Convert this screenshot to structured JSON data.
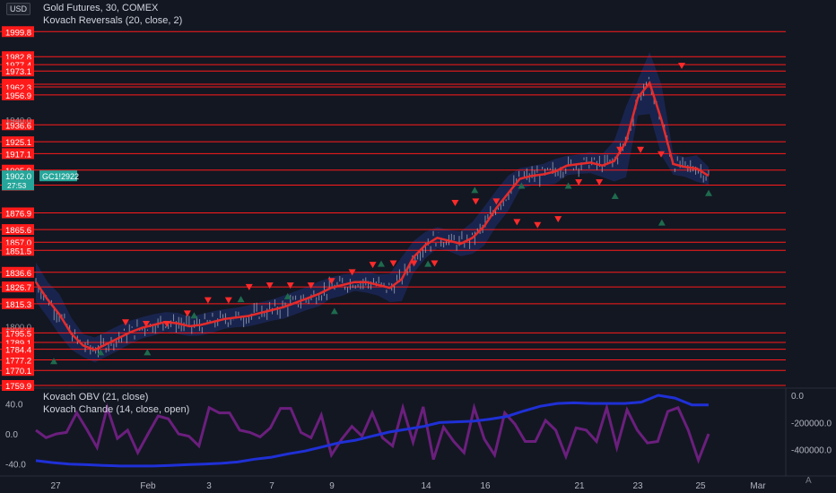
{
  "header": {
    "currency": "USD",
    "symbol_title": "Gold Futures, 30, COMEX",
    "indicator": "Kovach Reversals (20, close, 2)"
  },
  "sub_pane": {
    "indicator_1": "Kovach OBV (21, close)",
    "indicator_2": "Kovach Chande (14, close, open)"
  },
  "footer": {
    "auto_label": "A"
  },
  "colors": {
    "background": "#131722",
    "level_line": "#ff1a1a",
    "price_line": "#e52b2b",
    "band": "#1c2a5e",
    "candle": "#9aa3b5",
    "arrow_down": "#ff2a2a",
    "arrow_up": "#1e6b4e",
    "obv_line": "#1f30d6",
    "chande_line": "#6b1f7d",
    "price_badge": "#26a69a"
  },
  "icons": {
    "down_marker": "triangle-down-icon",
    "up_marker": "triangle-up-icon"
  },
  "chart_data": [
    {
      "type": "line",
      "xlabel": "",
      "ylabel": "",
      "x_ticks": [
        "27",
        "Feb",
        "3",
        "7",
        "9",
        "14",
        "16",
        "21",
        "23",
        "25",
        "Mar"
      ],
      "ylim": [
        1759.9,
        2003
      ],
      "levels": [
        1999.8,
        1982.8,
        1977.4,
        1973.1,
        1964.1,
        1962.3,
        1956.9,
        1936.6,
        1925.1,
        1917.1,
        1905.9,
        1895.7,
        1876.9,
        1865.6,
        1857.0,
        1851.5,
        1836.6,
        1826.7,
        1815.3,
        1795.5,
        1789.1,
        1784.4,
        1777.2,
        1770.1,
        1759.9
      ],
      "level_labels": [
        "1999.8",
        "1982.8",
        "1977.4",
        "1973.1",
        "1964.1",
        "1962.3",
        "1956.9",
        "1936.6",
        "1925.1",
        "1917.1",
        "1905.9",
        "1895.7",
        "1876.9",
        "1865.6",
        "1857.0",
        "1851.5",
        "1836.6",
        "1826.7",
        "1815.3",
        "1795.5",
        "1789.1",
        "1784.4",
        "1777.2",
        "1770.1",
        "1759.9"
      ],
      "gray_ticks": [
        "1940.0",
        "1800.0"
      ],
      "last_price": "1902.0",
      "last_price_sub": "27:53",
      "last_symbol": "GC1!2922",
      "series": [
        {
          "values": [
            1830,
            1818,
            1808,
            1795,
            1787,
            1784,
            1788,
            1792,
            1796,
            1799,
            1801,
            1803,
            1802,
            1800,
            1801,
            1803,
            1805,
            1806,
            1807,
            1809,
            1811,
            1813,
            1816,
            1819,
            1822,
            1826,
            1828,
            1830,
            1830,
            1828,
            1826,
            1832,
            1847,
            1855,
            1860,
            1858,
            1856,
            1860,
            1868,
            1880,
            1890,
            1900,
            1902,
            1903,
            1905,
            1909,
            1910,
            1911,
            1909,
            1912,
            1925,
            1955,
            1965,
            1940,
            1910,
            1908,
            1907,
            1902
          ]
        }
      ],
      "signals_down": [
        1798,
        1797,
        1797,
        1804,
        1813,
        1813,
        1822,
        1823,
        1823,
        1823,
        1826,
        1832,
        1837,
        1838,
        1838,
        1838,
        1879,
        1880,
        1880,
        1866,
        1864,
        1868,
        1893,
        1893,
        1915,
        1915,
        1912,
        1972
      ],
      "signals_up": [
        1781,
        1787,
        1787,
        1812,
        1823,
        1825,
        1815,
        1847,
        1847,
        1897,
        1900,
        1900,
        1893,
        1875,
        1895
      ]
    },
    {
      "type": "line",
      "xlabel": "",
      "ylabel": "",
      "ylim_left": [
        -50,
        55
      ],
      "left_ticks": [
        "40.0",
        "0.0",
        "-40.0"
      ],
      "right_ticks": [
        "0.0",
        "-200000.0",
        "-400000.0"
      ],
      "series": [
        {
          "name": "Kovach OBV",
          "values": [
            -480000,
            -495000,
            -505000,
            -510000,
            -515000,
            -520000,
            -520000,
            -520000,
            -515000,
            -510000,
            -505000,
            -500000,
            -490000,
            -470000,
            -455000,
            -430000,
            -410000,
            -380000,
            -350000,
            -330000,
            -300000,
            -270000,
            -250000,
            -230000,
            -200000,
            -195000,
            -190000,
            -175000,
            -155000,
            -115000,
            -80000,
            -60000,
            -55000,
            -60000,
            -60000,
            -60000,
            -50000,
            0,
            -20000,
            -70000,
            -70000
          ]
        },
        {
          "name": "Kovach Chande",
          "values": [
            5,
            -5,
            0,
            2,
            28,
            6,
            -18,
            35,
            -6,
            5,
            -25,
            0,
            24,
            20,
            0,
            -3,
            -16,
            35,
            28,
            28,
            5,
            2,
            -4,
            8,
            34,
            34,
            2,
            -5,
            25,
            -28,
            -7,
            10,
            -3,
            28,
            -5,
            -16,
            35,
            -11,
            36,
            -34,
            9,
            -10,
            -25,
            35,
            -7,
            -28,
            28,
            13,
            -10,
            -10,
            18,
            5,
            -30,
            8,
            5,
            -10,
            35,
            -18,
            32,
            5,
            -12,
            -10,
            30,
            35,
            5,
            -35,
            0
          ]
        }
      ]
    }
  ]
}
